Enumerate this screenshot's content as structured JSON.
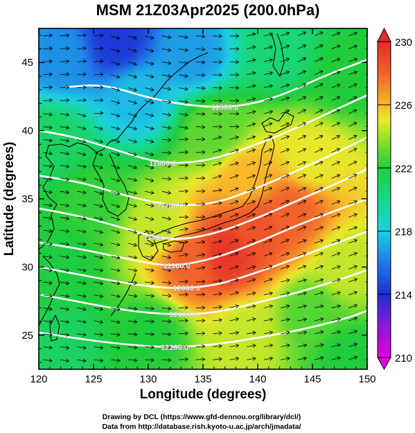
{
  "title": "MSM 21Z03Apr2025 (200.0hPa)",
  "credits": [
    "Drawing by DCL (https://www.gfd-dennou.org/library/dcl/)",
    "Data from http://database.rish.kyoto-u.ac.jp/arch/jmadata/"
  ],
  "chart_data": {
    "type": "heatmap",
    "title": "MSM 21Z03Apr2025 (200.0hPa)",
    "xlabel": "Longitude (degrees)",
    "ylabel": "Latitude  (degrees)",
    "xlim": [
      120,
      150
    ],
    "ylim": [
      22.5,
      47.5
    ],
    "xticks": [
      120,
      125,
      130,
      135,
      140,
      145,
      150
    ],
    "yticks": [
      25,
      30,
      35,
      40,
      45
    ],
    "colorbar": {
      "range": [
        210,
        230
      ],
      "ticks": [
        210,
        214,
        218,
        222,
        226,
        230
      ],
      "stops": [
        {
          "v": 210,
          "c": "#e400e0"
        },
        {
          "v": 212,
          "c": "#8a1ad6"
        },
        {
          "v": 214,
          "c": "#1c2fd4"
        },
        {
          "v": 216,
          "c": "#1f7be8"
        },
        {
          "v": 218,
          "c": "#1ccfe2"
        },
        {
          "v": 220,
          "c": "#16d889"
        },
        {
          "v": 222,
          "c": "#20cc3a"
        },
        {
          "v": 224,
          "c": "#9fe32a"
        },
        {
          "v": 225,
          "c": "#e8e82a"
        },
        {
          "v": 226,
          "c": "#f7b82a"
        },
        {
          "v": 228,
          "c": "#f2622a"
        },
        {
          "v": 230,
          "c": "#e52a2a"
        }
      ]
    },
    "field_anchors": [
      {
        "lon": 127,
        "lat": 46.5,
        "value": 214.3
      },
      {
        "lon": 122,
        "lat": 45.5,
        "value": 216.5
      },
      {
        "lon": 134,
        "lat": 45.5,
        "value": 216.8
      },
      {
        "lon": 129,
        "lat": 42.5,
        "value": 217.5
      },
      {
        "lon": 142,
        "lat": 46.0,
        "value": 220.5
      },
      {
        "lon": 148,
        "lat": 44.0,
        "value": 222.0
      },
      {
        "lon": 121,
        "lat": 39.0,
        "value": 221.0
      },
      {
        "lon": 125,
        "lat": 35.0,
        "value": 222.3
      },
      {
        "lon": 122,
        "lat": 30.0,
        "value": 221.8
      },
      {
        "lon": 122,
        "lat": 24.0,
        "value": 221.0
      },
      {
        "lon": 130,
        "lat": 25.0,
        "value": 222.0
      },
      {
        "lon": 131,
        "lat": 33.0,
        "value": 224.5
      },
      {
        "lon": 134,
        "lat": 30.5,
        "value": 228.0
      },
      {
        "lon": 137,
        "lat": 31.0,
        "value": 229.5
      },
      {
        "lon": 140,
        "lat": 33.0,
        "value": 228.5
      },
      {
        "lon": 143,
        "lat": 34.0,
        "value": 228.0
      },
      {
        "lon": 139,
        "lat": 36.5,
        "value": 226.0
      },
      {
        "lon": 145,
        "lat": 38.0,
        "value": 225.0
      },
      {
        "lon": 148,
        "lat": 30.0,
        "value": 224.5
      },
      {
        "lon": 145,
        "lat": 26.5,
        "value": 222.8
      },
      {
        "lon": 139,
        "lat": 25.0,
        "value": 224.5
      },
      {
        "lon": 148,
        "lat": 23.5,
        "value": 222.0
      },
      {
        "lon": 136,
        "lat": 40.0,
        "value": 223.0
      }
    ],
    "height_contours": [
      {
        "label": "11500.0",
        "label_lon": 137.0,
        "points": [
          [
            122.5,
            43.2
          ],
          [
            126,
            43.4
          ],
          [
            130,
            42.4
          ],
          [
            134,
            41.8
          ],
          [
            138,
            41.7
          ],
          [
            142,
            42.5
          ],
          [
            146,
            44.0
          ],
          [
            150,
            45.2
          ]
        ]
      },
      {
        "label": "11600.0",
        "label_lon": 131.3,
        "points": [
          [
            120,
            40.0
          ],
          [
            123,
            39.6
          ],
          [
            127,
            38.6
          ],
          [
            131,
            37.6
          ],
          [
            135,
            37.7
          ],
          [
            139,
            38.7
          ],
          [
            143,
            40.0
          ],
          [
            147,
            41.5
          ],
          [
            150,
            42.6
          ]
        ]
      },
      {
        "label": "11700.0",
        "label_lon": 132.0,
        "points": [
          [
            120,
            36.7
          ],
          [
            124,
            36.2
          ],
          [
            128,
            35.2
          ],
          [
            132,
            34.5
          ],
          [
            136,
            34.6
          ],
          [
            140,
            35.8
          ],
          [
            144,
            37.2
          ],
          [
            148,
            38.7
          ],
          [
            150,
            39.5
          ]
        ]
      },
      {
        "label": "11800.0",
        "label_lon": 130.8,
        "points": [
          [
            120,
            34.3
          ],
          [
            124,
            33.7
          ],
          [
            128,
            32.8
          ],
          [
            132,
            31.9
          ],
          [
            136,
            32.4
          ],
          [
            140,
            33.6
          ],
          [
            144,
            35.0
          ],
          [
            148,
            36.4
          ],
          [
            150,
            37.2
          ]
        ]
      },
      {
        "label": "11900.0",
        "label_lon": 132.6,
        "points": [
          [
            120,
            31.8
          ],
          [
            124,
            31.3
          ],
          [
            128,
            30.6
          ],
          [
            132,
            30.0
          ],
          [
            136,
            30.6
          ],
          [
            140,
            31.8
          ],
          [
            144,
            33.2
          ],
          [
            148,
            34.4
          ],
          [
            150,
            35.0
          ]
        ]
      },
      {
        "label": "12000.0",
        "label_lon": 133.5,
        "points": [
          [
            120,
            30.0
          ],
          [
            124,
            29.4
          ],
          [
            128,
            28.8
          ],
          [
            132,
            28.4
          ],
          [
            136,
            28.6
          ],
          [
            140,
            29.6
          ],
          [
            144,
            30.8
          ],
          [
            148,
            32.0
          ],
          [
            150,
            32.6
          ]
        ]
      },
      {
        "label": "12100.0",
        "label_lon": 133.2,
        "points": [
          [
            120,
            28.0
          ],
          [
            124,
            27.4
          ],
          [
            128,
            26.8
          ],
          [
            132,
            26.5
          ],
          [
            136,
            26.6
          ],
          [
            140,
            27.4
          ],
          [
            144,
            28.2
          ],
          [
            148,
            29.2
          ],
          [
            150,
            29.8
          ]
        ]
      },
      {
        "label": "12200.0",
        "label_lon": 132.4,
        "points": [
          [
            120,
            25.2
          ],
          [
            124,
            24.7
          ],
          [
            128,
            24.3
          ],
          [
            132,
            24.1
          ],
          [
            136,
            24.3
          ],
          [
            140,
            24.8
          ],
          [
            144,
            25.4
          ],
          [
            148,
            26.2
          ],
          [
            150,
            26.8
          ]
        ]
      }
    ]
  }
}
